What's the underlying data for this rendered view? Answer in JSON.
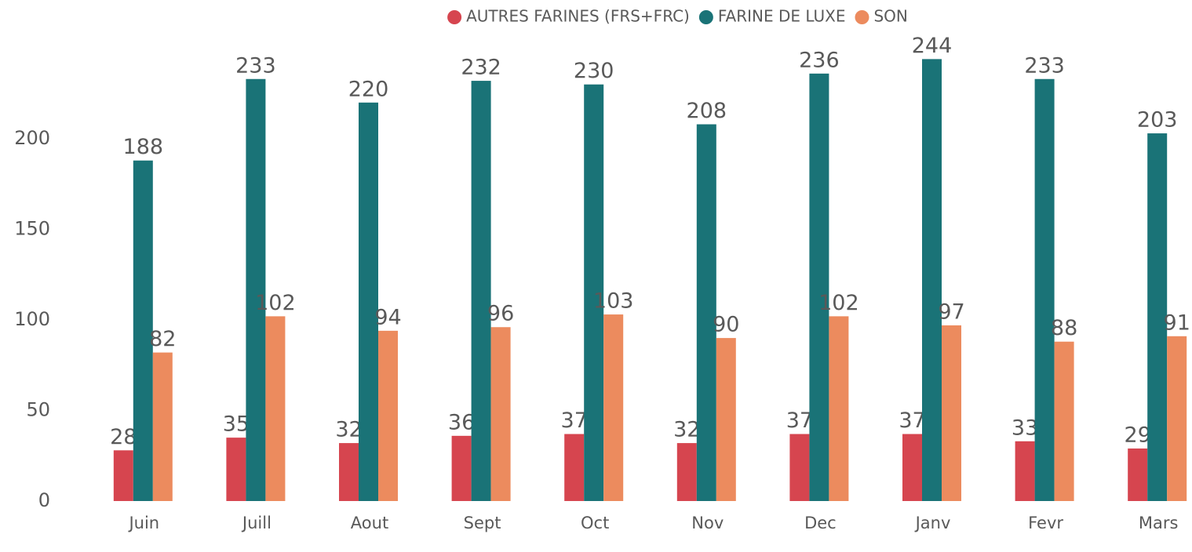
{
  "chart_data": {
    "type": "bar",
    "categories": [
      "Juin",
      "Juill",
      "Aout",
      "Sept",
      "Oct",
      "Nov",
      "Dec",
      "Janv",
      "Fevr",
      "Mars"
    ],
    "series": [
      {
        "name": "AUTRES FARINES (FRS+FRC)",
        "color": "#d6454f",
        "values": [
          28,
          35,
          32,
          36,
          37,
          32,
          37,
          37,
          33,
          29
        ]
      },
      {
        "name": "FARINE DE LUXE",
        "color": "#1a7377",
        "values": [
          188,
          233,
          220,
          232,
          230,
          208,
          236,
          244,
          233,
          203
        ]
      },
      {
        "name": "SON",
        "color": "#ec8b5e",
        "values": [
          82,
          102,
          94,
          96,
          103,
          90,
          102,
          97,
          88,
          91
        ]
      }
    ],
    "ylim": [
      0,
      250
    ],
    "yticks": [
      0,
      50,
      100,
      150,
      200
    ],
    "grid": false,
    "legend": "top"
  }
}
